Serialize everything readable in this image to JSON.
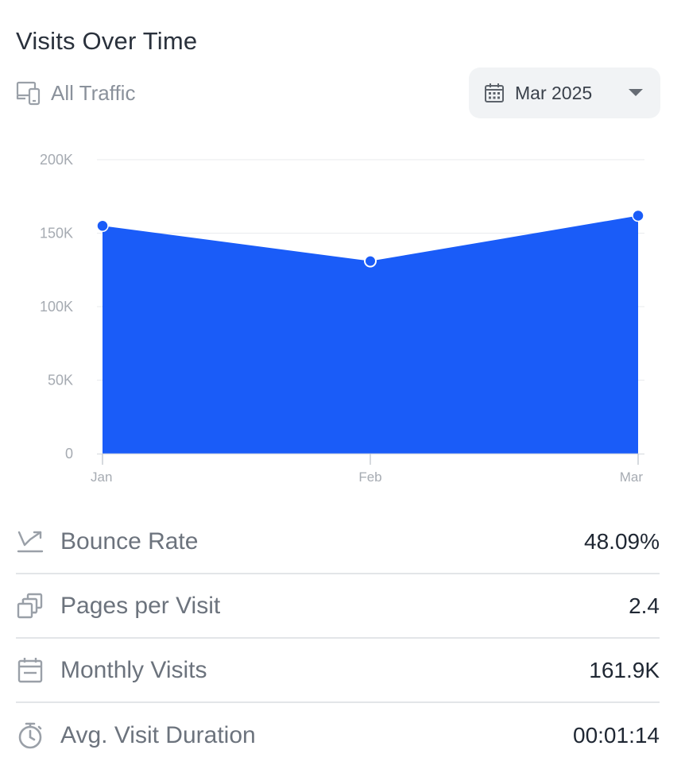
{
  "header": {
    "title": "Visits Over Time",
    "traffic_label": "All Traffic",
    "traffic_icon": "devices-icon",
    "date_selector": {
      "value": "Mar 2025",
      "icon": "calendar-icon"
    }
  },
  "chart_data": {
    "type": "area",
    "x": [
      "Jan",
      "Feb",
      "Mar"
    ],
    "series": [
      {
        "values": [
          155000,
          131000,
          161900
        ]
      }
    ],
    "yticks": [
      "0",
      "50K",
      "100K",
      "150K",
      "200K"
    ],
    "ylim": [
      0,
      200000
    ],
    "grid": true,
    "color": "#1a5cf8"
  },
  "metrics": [
    {
      "label": "Bounce Rate",
      "value": "48.09%",
      "icon": "trend-arrow-icon"
    },
    {
      "label": "Pages per Visit",
      "value": "2.4",
      "icon": "pages-stack-icon"
    },
    {
      "label": "Monthly Visits",
      "value": "161.9K",
      "icon": "calendar-icon"
    },
    {
      "label": "Avg. Visit Duration",
      "value": "00:01:14",
      "icon": "stopwatch-icon"
    }
  ]
}
